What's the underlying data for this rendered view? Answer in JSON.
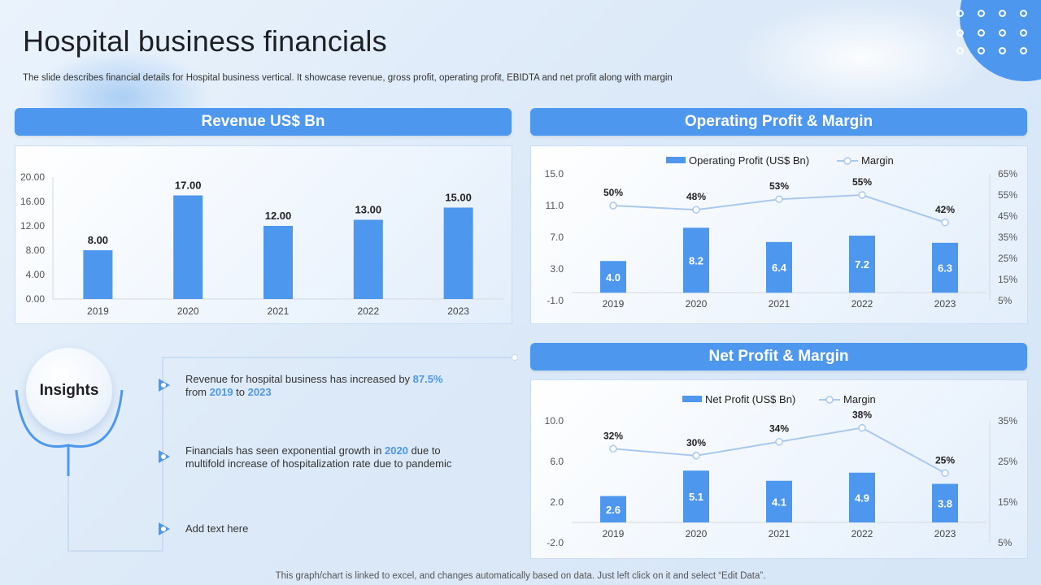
{
  "title": "Hospital business financials",
  "subtitle": "The slide describes financial details for Hospital business vertical. It showcase revenue, gross profit, operating profit, EBIDTA and net profit along with margin",
  "footer": "This graph/chart is linked to excel,  and changes automatically based on data. Just left click on it and select “Edit Data”.",
  "colors": {
    "accent": "#4d97ef",
    "line": "#a9c8ee",
    "text": "#333333"
  },
  "headers": {
    "revenue": "Revenue US$ Bn",
    "operating": "Operating Profit & Margin",
    "net": "Net Profit & Margin"
  },
  "insights": {
    "label": "Insights",
    "item1": {
      "pre": "Revenue  for hospital business has increased by ",
      "pct": "87.5%",
      "mid1": "from ",
      "y1": "2019",
      "mid2": " to ",
      "y2": "2023"
    },
    "item2": {
      "pre": "Financials has seen exponential growth in ",
      "yr": "2020",
      "post": " due to",
      "line2": "multifold increase of hospitalization rate due to pandemic"
    },
    "item3": "Add text here"
  },
  "chart_data": [
    {
      "type": "bar",
      "categories": [
        "2019",
        "2020",
        "2021",
        "2022",
        "2023"
      ],
      "values": [
        8,
        17,
        12,
        13,
        15
      ],
      "labels": [
        "8.00",
        "17.00",
        "12.00",
        "13.00",
        "15.00"
      ],
      "yticks": [
        "0.00",
        "4.00",
        "8.00",
        "12.00",
        "16.00",
        "20.00"
      ],
      "ylim": [
        0,
        20
      ]
    },
    {
      "type": "bar",
      "categories": [
        "2019",
        "2020",
        "2021",
        "2022",
        "2023"
      ],
      "series": [
        {
          "name": "Operating Profit (US$ Bn)",
          "values": [
            4.0,
            8.2,
            6.4,
            7.2,
            6.3
          ],
          "labels": [
            "4.0",
            "8.2",
            "6.4",
            "7.2",
            "6.3"
          ]
        },
        {
          "name": "Margin",
          "type": "line",
          "values": [
            50,
            48,
            53,
            55,
            42
          ],
          "labels": [
            "50%",
            "48%",
            "53%",
            "55%",
            "42%"
          ]
        }
      ],
      "ylim": [
        -1,
        15
      ],
      "yticks": [
        "-1.0",
        "3.0",
        "7.0",
        "11.0",
        "15.0"
      ],
      "y2lim": [
        5,
        65
      ],
      "y2ticks": [
        "5%",
        "15%",
        "25%",
        "35%",
        "45%",
        "55%",
        "65%"
      ],
      "legend": "top"
    },
    {
      "type": "bar",
      "categories": [
        "2019",
        "2020",
        "2021",
        "2022",
        "2023"
      ],
      "series": [
        {
          "name": "Net Profit (US$ Bn)",
          "values": [
            2.6,
            5.1,
            4.1,
            4.9,
            3.8
          ],
          "labels": [
            "2.6",
            "5.1",
            "4.1",
            "4.9",
            "3.8"
          ]
        },
        {
          "name": "Margin",
          "type": "line",
          "values": [
            32,
            30,
            34,
            38,
            25
          ],
          "labels": [
            "32%",
            "30%",
            "34%",
            "38%",
            "25%"
          ]
        }
      ],
      "ylim": [
        -2,
        10
      ],
      "yticks": [
        "-2.0",
        "2.0",
        "6.0",
        "10.0"
      ],
      "y2lim": [
        5,
        40
      ],
      "y2ticks": [
        "5%",
        "15%",
        "25%",
        "35%"
      ],
      "legend": "top"
    }
  ]
}
